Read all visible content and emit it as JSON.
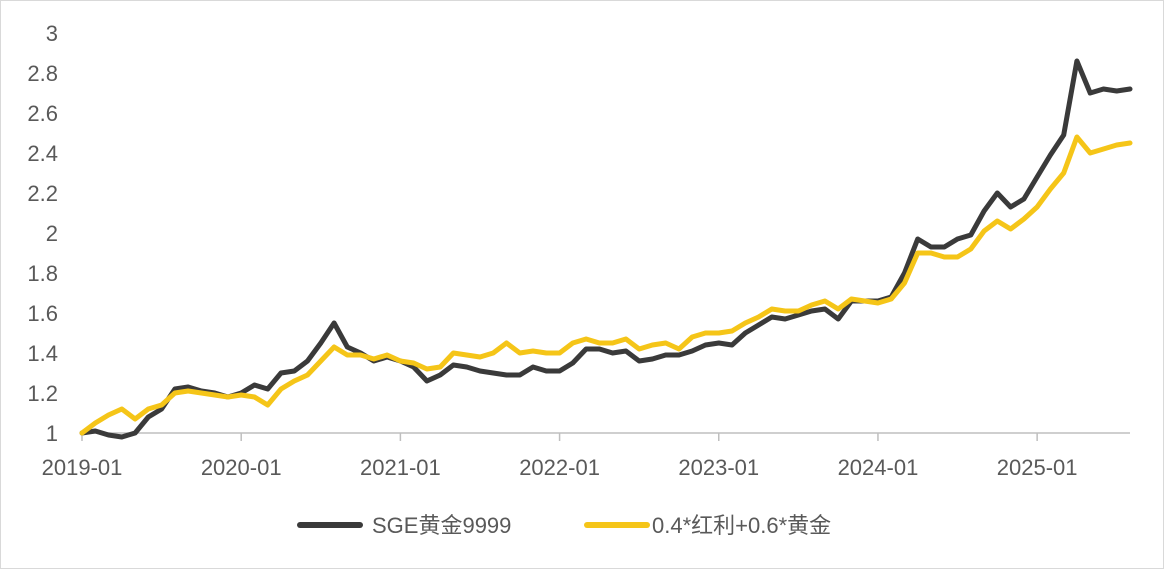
{
  "chart_data": {
    "type": "line",
    "title": "",
    "xlabel": "",
    "ylabel": "",
    "ylim": [
      1,
      3
    ],
    "y_ticks": [
      "1",
      "1.2",
      "1.4",
      "1.6",
      "1.8",
      "2",
      "2.2",
      "2.4",
      "2.6",
      "2.8",
      "3"
    ],
    "x_ticks": [
      "2019-01",
      "2020-01",
      "2021-01",
      "2022-01",
      "2023-01",
      "2024-01",
      "2025-01"
    ],
    "x_range": [
      "2019-01",
      "2025-08"
    ],
    "grid": false,
    "legend_position": "bottom",
    "series": [
      {
        "name": "SGE黄金9999",
        "color": "#3a3a3a",
        "points": [
          [
            "2019-01",
            1.0
          ],
          [
            "2019-02",
            1.01
          ],
          [
            "2019-03",
            0.99
          ],
          [
            "2019-04",
            0.98
          ],
          [
            "2019-05",
            1.0
          ],
          [
            "2019-06",
            1.08
          ],
          [
            "2019-07",
            1.12
          ],
          [
            "2019-08",
            1.22
          ],
          [
            "2019-09",
            1.23
          ],
          [
            "2019-10",
            1.21
          ],
          [
            "2019-11",
            1.2
          ],
          [
            "2019-12",
            1.18
          ],
          [
            "2020-01",
            1.2
          ],
          [
            "2020-02",
            1.24
          ],
          [
            "2020-03",
            1.22
          ],
          [
            "2020-04",
            1.3
          ],
          [
            "2020-05",
            1.31
          ],
          [
            "2020-06",
            1.36
          ],
          [
            "2020-07",
            1.45
          ],
          [
            "2020-08",
            1.55
          ],
          [
            "2020-09",
            1.43
          ],
          [
            "2020-10",
            1.4
          ],
          [
            "2020-11",
            1.36
          ],
          [
            "2020-12",
            1.38
          ],
          [
            "2021-01",
            1.36
          ],
          [
            "2021-02",
            1.33
          ],
          [
            "2021-03",
            1.26
          ],
          [
            "2021-04",
            1.29
          ],
          [
            "2021-05",
            1.34
          ],
          [
            "2021-06",
            1.33
          ],
          [
            "2021-07",
            1.31
          ],
          [
            "2021-08",
            1.3
          ],
          [
            "2021-09",
            1.29
          ],
          [
            "2021-10",
            1.29
          ],
          [
            "2021-11",
            1.33
          ],
          [
            "2021-12",
            1.31
          ],
          [
            "2022-01",
            1.31
          ],
          [
            "2022-02",
            1.35
          ],
          [
            "2022-03",
            1.42
          ],
          [
            "2022-04",
            1.42
          ],
          [
            "2022-05",
            1.4
          ],
          [
            "2022-06",
            1.41
          ],
          [
            "2022-07",
            1.36
          ],
          [
            "2022-08",
            1.37
          ],
          [
            "2022-09",
            1.39
          ],
          [
            "2022-10",
            1.39
          ],
          [
            "2022-11",
            1.41
          ],
          [
            "2022-12",
            1.44
          ],
          [
            "2023-01",
            1.45
          ],
          [
            "2023-02",
            1.44
          ],
          [
            "2023-03",
            1.5
          ],
          [
            "2023-04",
            1.54
          ],
          [
            "2023-05",
            1.58
          ],
          [
            "2023-06",
            1.57
          ],
          [
            "2023-07",
            1.59
          ],
          [
            "2023-08",
            1.61
          ],
          [
            "2023-09",
            1.62
          ],
          [
            "2023-10",
            1.57
          ],
          [
            "2023-11",
            1.66
          ],
          [
            "2023-12",
            1.66
          ],
          [
            "2024-01",
            1.66
          ],
          [
            "2024-02",
            1.68
          ],
          [
            "2024-03",
            1.8
          ],
          [
            "2024-04",
            1.97
          ],
          [
            "2024-05",
            1.93
          ],
          [
            "2024-06",
            1.93
          ],
          [
            "2024-07",
            1.97
          ],
          [
            "2024-08",
            1.99
          ],
          [
            "2024-09",
            2.11
          ],
          [
            "2024-10",
            2.2
          ],
          [
            "2024-11",
            2.13
          ],
          [
            "2024-12",
            2.17
          ],
          [
            "2025-01",
            2.28
          ],
          [
            "2025-02",
            2.39
          ],
          [
            "2025-03",
            2.49
          ],
          [
            "2025-04",
            2.86
          ],
          [
            "2025-05",
            2.7
          ],
          [
            "2025-06",
            2.72
          ],
          [
            "2025-07",
            2.71
          ],
          [
            "2025-08",
            2.72
          ]
        ]
      },
      {
        "name": "0.4*红利+0.6*黄金",
        "color": "#f5c518",
        "points": [
          [
            "2019-01",
            1.0
          ],
          [
            "2019-02",
            1.05
          ],
          [
            "2019-03",
            1.09
          ],
          [
            "2019-04",
            1.12
          ],
          [
            "2019-05",
            1.07
          ],
          [
            "2019-06",
            1.12
          ],
          [
            "2019-07",
            1.14
          ],
          [
            "2019-08",
            1.2
          ],
          [
            "2019-09",
            1.21
          ],
          [
            "2019-10",
            1.2
          ],
          [
            "2019-11",
            1.19
          ],
          [
            "2019-12",
            1.18
          ],
          [
            "2020-01",
            1.19
          ],
          [
            "2020-02",
            1.18
          ],
          [
            "2020-03",
            1.14
          ],
          [
            "2020-04",
            1.22
          ],
          [
            "2020-05",
            1.26
          ],
          [
            "2020-06",
            1.29
          ],
          [
            "2020-07",
            1.36
          ],
          [
            "2020-08",
            1.43
          ],
          [
            "2020-09",
            1.39
          ],
          [
            "2020-10",
            1.39
          ],
          [
            "2020-11",
            1.37
          ],
          [
            "2020-12",
            1.39
          ],
          [
            "2021-01",
            1.36
          ],
          [
            "2021-02",
            1.35
          ],
          [
            "2021-03",
            1.32
          ],
          [
            "2021-04",
            1.33
          ],
          [
            "2021-05",
            1.4
          ],
          [
            "2021-06",
            1.39
          ],
          [
            "2021-07",
            1.38
          ],
          [
            "2021-08",
            1.4
          ],
          [
            "2021-09",
            1.45
          ],
          [
            "2021-10",
            1.4
          ],
          [
            "2021-11",
            1.41
          ],
          [
            "2021-12",
            1.4
          ],
          [
            "2022-01",
            1.4
          ],
          [
            "2022-02",
            1.45
          ],
          [
            "2022-03",
            1.47
          ],
          [
            "2022-04",
            1.45
          ],
          [
            "2022-05",
            1.45
          ],
          [
            "2022-06",
            1.47
          ],
          [
            "2022-07",
            1.42
          ],
          [
            "2022-08",
            1.44
          ],
          [
            "2022-09",
            1.45
          ],
          [
            "2022-10",
            1.42
          ],
          [
            "2022-11",
            1.48
          ],
          [
            "2022-12",
            1.5
          ],
          [
            "2023-01",
            1.5
          ],
          [
            "2023-02",
            1.51
          ],
          [
            "2023-03",
            1.55
          ],
          [
            "2023-04",
            1.58
          ],
          [
            "2023-05",
            1.62
          ],
          [
            "2023-06",
            1.61
          ],
          [
            "2023-07",
            1.61
          ],
          [
            "2023-08",
            1.64
          ],
          [
            "2023-09",
            1.66
          ],
          [
            "2023-10",
            1.62
          ],
          [
            "2023-11",
            1.67
          ],
          [
            "2023-12",
            1.66
          ],
          [
            "2024-01",
            1.65
          ],
          [
            "2024-02",
            1.67
          ],
          [
            "2024-03",
            1.75
          ],
          [
            "2024-04",
            1.9
          ],
          [
            "2024-05",
            1.9
          ],
          [
            "2024-06",
            1.88
          ],
          [
            "2024-07",
            1.88
          ],
          [
            "2024-08",
            1.92
          ],
          [
            "2024-09",
            2.01
          ],
          [
            "2024-10",
            2.06
          ],
          [
            "2024-11",
            2.02
          ],
          [
            "2024-12",
            2.07
          ],
          [
            "2025-01",
            2.13
          ],
          [
            "2025-02",
            2.22
          ],
          [
            "2025-03",
            2.3
          ],
          [
            "2025-04",
            2.48
          ],
          [
            "2025-05",
            2.4
          ],
          [
            "2025-06",
            2.42
          ],
          [
            "2025-07",
            2.44
          ],
          [
            "2025-08",
            2.45
          ]
        ]
      }
    ]
  }
}
